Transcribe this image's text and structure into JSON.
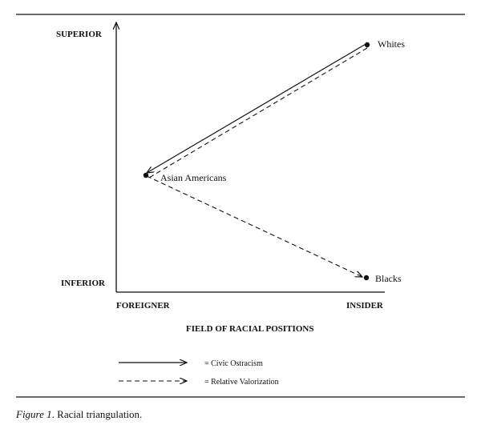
{
  "axes": {
    "y_top_label": "SUPERIOR",
    "y_bottom_label": "INFERIOR",
    "x_left_label": "FOREIGNER",
    "x_right_label": "INSIDER",
    "x_title": "FIELD OF RACIAL POSITIONS"
  },
  "nodes": {
    "whites": "Whites",
    "asian_americans": "Asian Americans",
    "blacks": "Blacks"
  },
  "legend": {
    "solid": "= Civic Ostracism",
    "dashed": "= Relative Valorization"
  },
  "caption": {
    "label": "Figure 1",
    "text": ". Racial triangulation."
  }
}
